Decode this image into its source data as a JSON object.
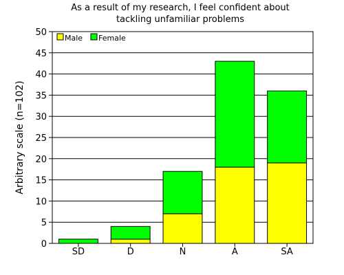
{
  "chart_data": {
    "type": "bar",
    "stacked": true,
    "title_lines": [
      "As a result of my research, I feel confident about",
      "tackling unfamiliar problems"
    ],
    "xlabel": "",
    "ylabel": "Arbitrary scale (n=102)",
    "categories": [
      "SD",
      "D",
      "N",
      "A",
      "SA"
    ],
    "series": [
      {
        "name": "Male",
        "color": "#ffff00",
        "values": [
          0,
          1,
          7,
          18,
          19
        ]
      },
      {
        "name": "Female",
        "color": "#00ff00",
        "values": [
          1,
          3,
          10,
          25,
          17
        ]
      }
    ],
    "ylim": [
      0,
      50
    ],
    "yticks": [
      0,
      5,
      10,
      15,
      20,
      25,
      30,
      35,
      40,
      45,
      50
    ],
    "grid": true,
    "legend_position": "top-left"
  }
}
